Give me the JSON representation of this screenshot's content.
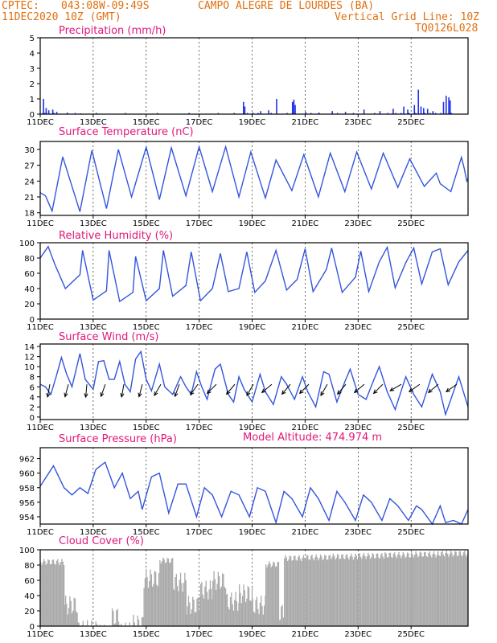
{
  "header": {
    "source": "CPTEC:",
    "coords": "043:08W-09:49S",
    "location": "CAMPO ALEGRE DE LOURDES (BA)",
    "run": "11DEC2020 10Z (GMT)",
    "grid_note": "Vertical Grid Line: 10Z",
    "code": "TQ0126L028"
  },
  "model_altitude": "Model Altitude: 474.974 m",
  "date_labels": [
    "11DEC",
    "13DEC",
    "15DEC",
    "17DEC",
    "19DEC",
    "21DEC",
    "23DEC",
    "25DEC"
  ],
  "colors": {
    "header": "#e07010",
    "title": "#e0187a",
    "line": "#3355dd",
    "bars": "#2233ee",
    "cloud": "#aaaaaa"
  },
  "chart_data": [
    {
      "type": "bar",
      "title": "Precipitation (mm/h)",
      "ylim": [
        0,
        5
      ],
      "yticks": [
        0,
        1,
        2,
        3,
        4,
        5
      ],
      "x_unit": "days since 11DEC2020 10Z",
      "points": [
        [
          0.1,
          1.0
        ],
        [
          0.2,
          0.4
        ],
        [
          0.3,
          0.25
        ],
        [
          0.45,
          0.3
        ],
        [
          0.6,
          0.15
        ],
        [
          1.0,
          0.1
        ],
        [
          1.5,
          0.05
        ],
        [
          7.65,
          0.8
        ],
        [
          7.7,
          0.5
        ],
        [
          8.0,
          0.1
        ],
        [
          8.3,
          0.2
        ],
        [
          8.6,
          0.25
        ],
        [
          8.9,
          1.0
        ],
        [
          9.5,
          0.8
        ],
        [
          9.55,
          0.95
        ],
        [
          9.6,
          0.6
        ],
        [
          10.0,
          0.15
        ],
        [
          10.5,
          0.1
        ],
        [
          11.0,
          0.2
        ],
        [
          11.5,
          0.15
        ],
        [
          12.2,
          0.3
        ],
        [
          12.8,
          0.2
        ],
        [
          13.3,
          0.35
        ],
        [
          13.7,
          0.5
        ],
        [
          13.85,
          0.3
        ],
        [
          14.1,
          0.6
        ],
        [
          14.25,
          1.6
        ],
        [
          14.35,
          0.5
        ],
        [
          14.45,
          0.4
        ],
        [
          14.6,
          0.35
        ],
        [
          14.8,
          0.2
        ],
        [
          15.2,
          0.8
        ],
        [
          15.3,
          1.2
        ],
        [
          15.4,
          1.1
        ],
        [
          15.45,
          0.9
        ]
      ],
      "smallbars": [
        0.08,
        0.15,
        0.22,
        0.5,
        1.3,
        2.1,
        3.2,
        4.4,
        5.6,
        6.7,
        7.3,
        7.8,
        8.2,
        8.7,
        9.3,
        10.2,
        11.2,
        11.8,
        12.6,
        13.1,
        13.4,
        13.6,
        13.9,
        14.15,
        14.5,
        14.7,
        14.9,
        15.1,
        15.5
      ]
    },
    {
      "type": "line",
      "title": "Surface Temperature (nC)",
      "ylim": [
        17.5,
        31.5
      ],
      "yticks": [
        18,
        21,
        24,
        27,
        30
      ],
      "points": [
        [
          0,
          21.8
        ],
        [
          0.2,
          21.2
        ],
        [
          0.45,
          18.3
        ],
        [
          0.85,
          28.6
        ],
        [
          1.5,
          18.2
        ],
        [
          1.95,
          29.8
        ],
        [
          2.5,
          18.8
        ],
        [
          2.95,
          30.0
        ],
        [
          3.45,
          21.0
        ],
        [
          4.0,
          30.4
        ],
        [
          4.5,
          20.5
        ],
        [
          4.95,
          30.3
        ],
        [
          5.5,
          21.2
        ],
        [
          6.0,
          30.5
        ],
        [
          6.5,
          22.0
        ],
        [
          7.0,
          30.5
        ],
        [
          7.5,
          21.0
        ],
        [
          7.95,
          29.5
        ],
        [
          8.5,
          20.8
        ],
        [
          8.9,
          28.0
        ],
        [
          9.5,
          22.2
        ],
        [
          9.95,
          29.0
        ],
        [
          10.5,
          21.0
        ],
        [
          10.95,
          29.3
        ],
        [
          11.5,
          22.0
        ],
        [
          11.95,
          29.5
        ],
        [
          12.5,
          22.5
        ],
        [
          12.95,
          29.3
        ],
        [
          13.5,
          22.8
        ],
        [
          13.95,
          28.2
        ],
        [
          14.5,
          23.0
        ],
        [
          14.95,
          25.5
        ],
        [
          15.1,
          23.5
        ],
        [
          15.5,
          22.0
        ],
        [
          15.9,
          28.5
        ],
        [
          16.0,
          26.5
        ],
        [
          16.1,
          24.0
        ],
        [
          16.15,
          24.5
        ]
      ]
    },
    {
      "type": "line",
      "title": "Relative Humidity (%)",
      "ylim": [
        0,
        100
      ],
      "yticks": [
        0,
        20,
        40,
        60,
        80,
        100
      ],
      "points": [
        [
          0,
          80
        ],
        [
          0.3,
          95
        ],
        [
          0.55,
          72
        ],
        [
          0.95,
          40
        ],
        [
          1.5,
          58
        ],
        [
          1.6,
          90
        ],
        [
          2.0,
          25
        ],
        [
          2.5,
          37
        ],
        [
          2.6,
          90
        ],
        [
          3.0,
          23
        ],
        [
          3.5,
          35
        ],
        [
          3.6,
          82
        ],
        [
          4.0,
          24
        ],
        [
          4.5,
          40
        ],
        [
          4.65,
          90
        ],
        [
          5.0,
          30
        ],
        [
          5.5,
          44
        ],
        [
          5.7,
          88
        ],
        [
          6.05,
          24
        ],
        [
          6.5,
          40
        ],
        [
          6.8,
          86
        ],
        [
          7.1,
          36
        ],
        [
          7.5,
          40
        ],
        [
          7.8,
          88
        ],
        [
          8.1,
          35
        ],
        [
          8.5,
          50
        ],
        [
          8.9,
          90
        ],
        [
          9.3,
          38
        ],
        [
          9.7,
          52
        ],
        [
          10.0,
          92
        ],
        [
          10.3,
          36
        ],
        [
          10.8,
          65
        ],
        [
          11.0,
          93
        ],
        [
          11.4,
          35
        ],
        [
          11.9,
          55
        ],
        [
          12.1,
          89
        ],
        [
          12.4,
          36
        ],
        [
          12.8,
          75
        ],
        [
          13.1,
          94
        ],
        [
          13.4,
          41
        ],
        [
          13.8,
          74
        ],
        [
          14.1,
          93
        ],
        [
          14.4,
          46
        ],
        [
          14.8,
          88
        ],
        [
          15.1,
          92
        ],
        [
          15.4,
          45
        ],
        [
          15.8,
          75
        ],
        [
          16.15,
          90
        ]
      ]
    },
    {
      "type": "line",
      "title": "Surface Wind (m/s)",
      "ylim": [
        -0.5,
        14.5
      ],
      "yticks": [
        0,
        2,
        4,
        6,
        8,
        10,
        12,
        14
      ],
      "points": [
        [
          0,
          6.5
        ],
        [
          0.2,
          6.0
        ],
        [
          0.4,
          4.5
        ],
        [
          0.6,
          8.0
        ],
        [
          0.8,
          11.8
        ],
        [
          1.0,
          8.5
        ],
        [
          1.2,
          6.0
        ],
        [
          1.5,
          12.6
        ],
        [
          1.7,
          7.5
        ],
        [
          2.0,
          5.5
        ],
        [
          2.2,
          11.0
        ],
        [
          2.4,
          11.2
        ],
        [
          2.6,
          7.5
        ],
        [
          2.8,
          7.5
        ],
        [
          3.0,
          11.0
        ],
        [
          3.2,
          6.5
        ],
        [
          3.4,
          5.0
        ],
        [
          3.6,
          11.5
        ],
        [
          3.8,
          13.0
        ],
        [
          4.0,
          7.5
        ],
        [
          4.2,
          5.2
        ],
        [
          4.5,
          10.5
        ],
        [
          4.7,
          6.0
        ],
        [
          5.0,
          4.5
        ],
        [
          5.3,
          8.0
        ],
        [
          5.5,
          6.0
        ],
        [
          5.7,
          4.5
        ],
        [
          5.9,
          9.0
        ],
        [
          6.1,
          6.0
        ],
        [
          6.3,
          3.5
        ],
        [
          6.6,
          9.5
        ],
        [
          6.8,
          10.5
        ],
        [
          7.1,
          4.5
        ],
        [
          7.3,
          3.0
        ],
        [
          7.5,
          8.0
        ],
        [
          7.7,
          5.5
        ],
        [
          8.0,
          3.0
        ],
        [
          8.3,
          8.5
        ],
        [
          8.5,
          5.0
        ],
        [
          8.8,
          2.5
        ],
        [
          9.1,
          8.0
        ],
        [
          9.3,
          6.5
        ],
        [
          9.6,
          3.5
        ],
        [
          9.9,
          8.0
        ],
        [
          10.1,
          5.0
        ],
        [
          10.4,
          2.0
        ],
        [
          10.7,
          9.0
        ],
        [
          10.9,
          8.5
        ],
        [
          11.2,
          3.0
        ],
        [
          11.5,
          7.0
        ],
        [
          11.7,
          9.5
        ],
        [
          12.0,
          4.5
        ],
        [
          12.3,
          3.5
        ],
        [
          12.6,
          7.5
        ],
        [
          12.8,
          10.0
        ],
        [
          13.1,
          5.0
        ],
        [
          13.4,
          1.5
        ],
        [
          13.8,
          8.0
        ],
        [
          14.1,
          4.5
        ],
        [
          14.4,
          2.0
        ],
        [
          14.8,
          8.5
        ],
        [
          15.1,
          5.0
        ],
        [
          15.3,
          0.5
        ],
        [
          15.6,
          5.0
        ],
        [
          15.8,
          8.0
        ],
        [
          16.15,
          2.0
        ]
      ],
      "barbs_deg": [
        260,
        255,
        265,
        250,
        260,
        255,
        240,
        250,
        235,
        225,
        230,
        240,
        220,
        230,
        225,
        240,
        230,
        220,
        225,
        210,
        215,
        220,
        215
      ]
    },
    {
      "type": "line",
      "title": "Surface Pressure (hPa)",
      "ylim": [
        953,
        963.5
      ],
      "yticks": [
        954,
        956,
        958,
        960,
        962
      ],
      "points": [
        [
          0,
          958.2
        ],
        [
          0.5,
          961.0
        ],
        [
          0.9,
          958.0
        ],
        [
          1.2,
          957.0
        ],
        [
          1.5,
          958.0
        ],
        [
          1.8,
          957.2
        ],
        [
          2.1,
          960.5
        ],
        [
          2.45,
          961.5
        ],
        [
          2.8,
          958.0
        ],
        [
          3.1,
          960.0
        ],
        [
          3.4,
          956.5
        ],
        [
          3.7,
          957.5
        ],
        [
          3.85,
          955.0
        ],
        [
          4.2,
          959.5
        ],
        [
          4.5,
          960.0
        ],
        [
          4.85,
          954.5
        ],
        [
          5.2,
          958.5
        ],
        [
          5.5,
          958.5
        ],
        [
          5.9,
          954.0
        ],
        [
          6.2,
          958.0
        ],
        [
          6.5,
          957.0
        ],
        [
          6.85,
          954.0
        ],
        [
          7.2,
          957.5
        ],
        [
          7.5,
          957.0
        ],
        [
          7.9,
          954.0
        ],
        [
          8.2,
          958.0
        ],
        [
          8.5,
          957.5
        ],
        [
          8.9,
          953.2
        ],
        [
          9.2,
          957.5
        ],
        [
          9.5,
          956.5
        ],
        [
          9.9,
          954.0
        ],
        [
          10.2,
          958.0
        ],
        [
          10.5,
          956.5
        ],
        [
          10.9,
          953.5
        ],
        [
          11.2,
          957.5
        ],
        [
          11.5,
          956.0
        ],
        [
          11.9,
          953.5
        ],
        [
          12.2,
          957.0
        ],
        [
          12.5,
          956.0
        ],
        [
          12.9,
          953.5
        ],
        [
          13.2,
          956.5
        ],
        [
          13.5,
          955.5
        ],
        [
          13.9,
          953.5
        ],
        [
          14.2,
          955.5
        ],
        [
          14.4,
          955.0
        ],
        [
          14.8,
          953.0
        ],
        [
          15.1,
          955.5
        ],
        [
          15.3,
          953.2
        ],
        [
          15.6,
          953.5
        ],
        [
          15.9,
          953.0
        ],
        [
          16.15,
          955.0
        ]
      ]
    },
    {
      "type": "area",
      "title": "Cloud Cover (%)",
      "ylim": [
        0,
        100
      ],
      "yticks": [
        0,
        20,
        40,
        60,
        80,
        100
      ],
      "segments": [
        [
          0.0,
          0.9,
          88
        ],
        [
          0.9,
          1.4,
          40
        ],
        [
          1.4,
          2.2,
          8
        ],
        [
          2.2,
          2.7,
          2
        ],
        [
          2.7,
          3.0,
          25
        ],
        [
          3.0,
          3.5,
          5
        ],
        [
          3.5,
          3.9,
          15
        ],
        [
          3.9,
          4.5,
          75
        ],
        [
          4.5,
          5.0,
          90
        ],
        [
          5.0,
          5.5,
          70
        ],
        [
          5.5,
          6.0,
          40
        ],
        [
          6.0,
          6.5,
          60
        ],
        [
          6.5,
          7.0,
          72
        ],
        [
          7.0,
          7.5,
          45
        ],
        [
          7.5,
          8.0,
          55
        ],
        [
          8.0,
          8.5,
          40
        ],
        [
          8.5,
          9.0,
          85
        ],
        [
          9.0,
          9.2,
          30
        ],
        [
          9.2,
          10.0,
          93
        ],
        [
          10.0,
          11.0,
          94
        ],
        [
          11.0,
          12.0,
          95
        ],
        [
          12.0,
          13.0,
          96
        ],
        [
          13.0,
          14.0,
          97
        ],
        [
          14.0,
          15.0,
          98
        ],
        [
          15.0,
          16.15,
          99
        ]
      ]
    }
  ]
}
